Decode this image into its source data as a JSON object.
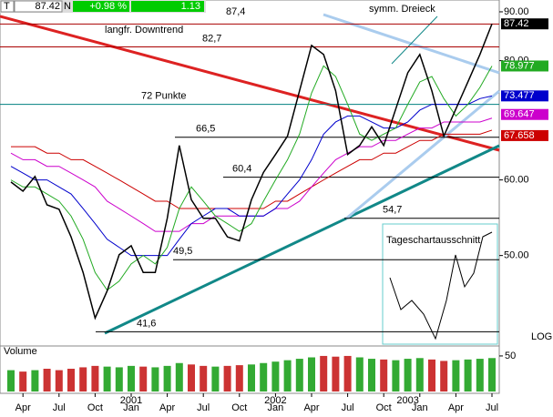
{
  "header": {
    "symbol": "T",
    "last": "87.42",
    "flag": "N",
    "change": "+0.98 %",
    "diff": "1.13"
  },
  "chart_data": {
    "type": "line",
    "log_scale": true,
    "categories": [
      null,
      "Apr",
      null,
      null,
      "Jul",
      null,
      null,
      "Oct",
      null,
      null,
      "Jan",
      null,
      null,
      "Apr",
      null,
      null,
      "Jul",
      null,
      null,
      "Oct",
      null,
      null,
      "Jan",
      null,
      null,
      "Apr",
      null,
      null,
      "Jul",
      null,
      null,
      "Oct",
      null,
      null,
      "Jan",
      null,
      null,
      "Apr",
      null,
      null,
      "Jul"
    ],
    "years": [
      null,
      null,
      null,
      null,
      null,
      null,
      null,
      null,
      null,
      null,
      "2001",
      null,
      null,
      null,
      null,
      null,
      null,
      null,
      null,
      null,
      null,
      null,
      "2002",
      null,
      null,
      null,
      null,
      null,
      null,
      null,
      null,
      null,
      null,
      "2003",
      null,
      null,
      null,
      null,
      null,
      null,
      null
    ],
    "ylim": [
      40.2,
      92.6
    ],
    "yticks": [
      {
        "value": 90,
        "label": "90.00"
      },
      {
        "value": 80,
        "label": "80.00"
      },
      {
        "value": 60,
        "label": "60.00"
      },
      {
        "value": 50,
        "label": "50.00"
      }
    ],
    "scale_label": "LOG",
    "series": [
      {
        "color": "#000000",
        "values": [
          59.7,
          58.4,
          60.5,
          56.5,
          55.9,
          52.3,
          48.0,
          43.0,
          45.9,
          50.1,
          51.2,
          48.0,
          48.0,
          54.7,
          65.2,
          57.2,
          54.7,
          54.7,
          52.3,
          51.8,
          57.2,
          61.1,
          63.8,
          66.7,
          74.4,
          83.0,
          81.2,
          74.4,
          63.8,
          65.2,
          68.2,
          65.2,
          71.2,
          77.7,
          81.2,
          74.4,
          66.7,
          71.2,
          76.0,
          81.2,
          87.42
        ]
      },
      {
        "color": "#22aa22",
        "values": [
          60,
          59,
          59,
          58,
          57,
          55,
          52,
          48,
          46,
          47,
          49,
          50,
          49,
          51,
          56,
          59,
          57,
          55,
          54,
          53,
          54,
          57,
          60,
          63,
          67,
          74,
          79,
          77,
          72,
          67,
          66,
          67,
          68,
          72,
          76,
          77,
          73,
          70,
          72,
          75,
          78.977
        ]
      },
      {
        "color": "#0000cc",
        "values": [
          62,
          61,
          60,
          60,
          59,
          58,
          56,
          54,
          52,
          51,
          50,
          50,
          50,
          50,
          52,
          54,
          55,
          56,
          56,
          55,
          55,
          55,
          56,
          58,
          60,
          63,
          67,
          69,
          70,
          70,
          69,
          68,
          68,
          69,
          71,
          72,
          72,
          72,
          72,
          73,
          73.477
        ]
      },
      {
        "color": "#cc00cc",
        "values": [
          64,
          63,
          63,
          62,
          62,
          61,
          60,
          59,
          57,
          56,
          55,
          54,
          53,
          53,
          53,
          54,
          54,
          55,
          55,
          55,
          55,
          55,
          56,
          56,
          57,
          59,
          61,
          63,
          64,
          65,
          65,
          66,
          66,
          67,
          68,
          68,
          69,
          69,
          69,
          69,
          69.647
        ]
      },
      {
        "color": "#cc0000",
        "values": [
          65,
          65,
          65,
          64,
          64,
          63,
          63,
          62,
          61,
          60,
          59,
          58,
          57,
          57,
          56,
          56,
          56,
          56,
          56,
          56,
          56,
          56,
          57,
          57,
          58,
          59,
          60,
          61,
          62,
          63,
          63,
          64,
          64,
          65,
          66,
          66,
          67,
          67,
          67,
          67,
          67.658
        ]
      }
    ],
    "levels": [
      {
        "label": "87,4",
        "value": 87.4,
        "color": "#aa0000"
      },
      {
        "label": "82,7",
        "value": 82.7,
        "color": "#aa0000"
      },
      {
        "label": "72 Punkte",
        "value": 72,
        "color": "#008080"
      },
      {
        "label": "66,5",
        "value": 66.5,
        "color": "#000000"
      },
      {
        "label": "60,4",
        "value": 60.4,
        "color": "#000000"
      },
      {
        "label": "54,7",
        "value": 54.7,
        "color": "#000000"
      },
      {
        "label": "49,5",
        "value": 49.5,
        "color": "#000000"
      },
      {
        "label": "41,6",
        "value": 41.6,
        "color": "#000000"
      }
    ],
    "annotations": {
      "downtrend": "langfr. Downtrend",
      "triangle": "symm. Dreieck",
      "inset": "Tageschartausschnitt"
    },
    "volume": {
      "label": "Volume",
      "ylim": [
        0,
        64
      ],
      "yticks": [
        50
      ],
      "values": [
        30,
        28,
        30,
        32,
        30,
        32,
        34,
        36,
        35,
        34,
        36,
        35,
        34,
        36,
        40,
        38,
        36,
        35,
        36,
        37,
        38,
        40,
        42,
        44,
        46,
        48,
        50,
        49,
        50,
        48,
        46,
        45,
        44,
        46,
        47,
        45,
        43,
        44,
        45,
        46,
        47
      ]
    }
  }
}
